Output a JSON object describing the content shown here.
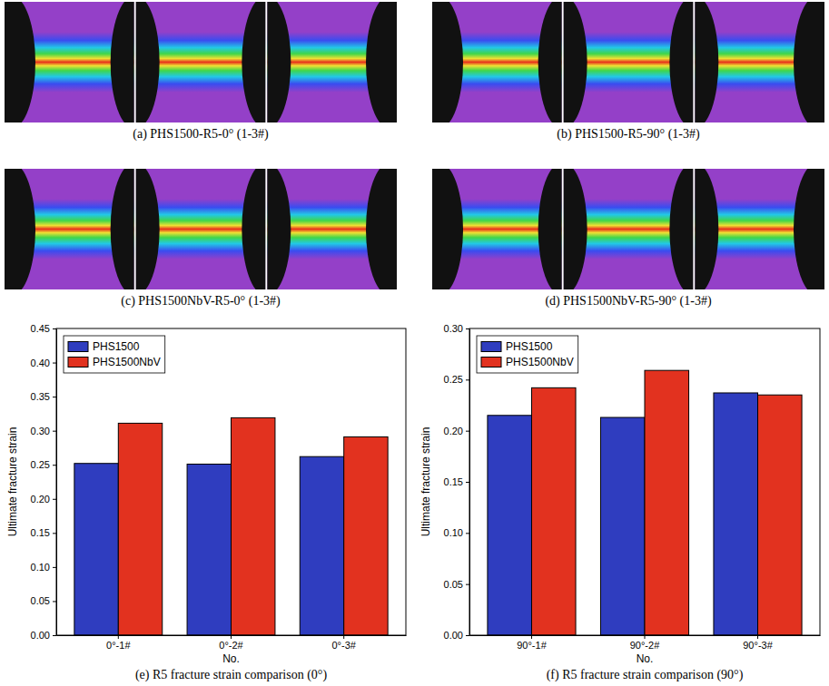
{
  "image_panels": [
    {
      "caption": "(a) PHS1500-R5-0° (1-3#)"
    },
    {
      "caption": "(b) PHS1500-R5-90° (1-3#)"
    },
    {
      "caption": "(c) PHS1500NbV-R5-0° (1-3#)"
    },
    {
      "caption": "(d) PHS1500NbV-R5-90° (1-3#)"
    }
  ],
  "chart_data": [
    {
      "type": "bar",
      "title": "(e) R5 fracture strain comparison (0°)",
      "x_label": "No.",
      "y_label": "Ultimate fracture strain",
      "categories": [
        "0°-1#",
        "0°-2#",
        "0°-3#"
      ],
      "series": [
        {
          "name": "PHS1500",
          "color": "#2f3dbf",
          "values": [
            0.252,
            0.251,
            0.262
          ]
        },
        {
          "name": "PHS1500NbV",
          "color": "#e2321f",
          "values": [
            0.311,
            0.319,
            0.291
          ]
        }
      ],
      "ylim": [
        0,
        0.45
      ],
      "yticks": [
        {
          "value": 0,
          "label": "0.00"
        },
        {
          "value": 0.05,
          "label": "0.05"
        },
        {
          "value": 0.1,
          "label": "0.10"
        },
        {
          "value": 0.15,
          "label": "0.15"
        },
        {
          "value": 0.2,
          "label": "0.20"
        },
        {
          "value": 0.25,
          "label": "0.25"
        },
        {
          "value": 0.3,
          "label": "0.30"
        },
        {
          "value": 0.35,
          "label": "0.35"
        },
        {
          "value": 0.4,
          "label": "0.40"
        },
        {
          "value": 0.45,
          "label": "0.45"
        }
      ],
      "legend": "upper left",
      "grid": false
    },
    {
      "type": "bar",
      "title": "(f) R5 fracture strain comparison (90°)",
      "x_label": "No.",
      "y_label": "Ultimate fracture strain",
      "categories": [
        "90°-1#",
        "90°-2#",
        "90°-3#"
      ],
      "series": [
        {
          "name": "PHS1500",
          "color": "#2f3dbf",
          "values": [
            0.215,
            0.213,
            0.237
          ]
        },
        {
          "name": "PHS1500NbV",
          "color": "#e2321f",
          "values": [
            0.242,
            0.259,
            0.235
          ]
        }
      ],
      "ylim": [
        0,
        0.3
      ],
      "yticks": [
        {
          "value": 0,
          "label": "0.00"
        },
        {
          "value": 0.05,
          "label": "0.05"
        },
        {
          "value": 0.1,
          "label": "0.10"
        },
        {
          "value": 0.15,
          "label": "0.15"
        },
        {
          "value": 0.2,
          "label": "0.20"
        },
        {
          "value": 0.25,
          "label": "0.25"
        },
        {
          "value": 0.3,
          "label": "0.30"
        }
      ],
      "legend": "upper left",
      "grid": false
    }
  ]
}
